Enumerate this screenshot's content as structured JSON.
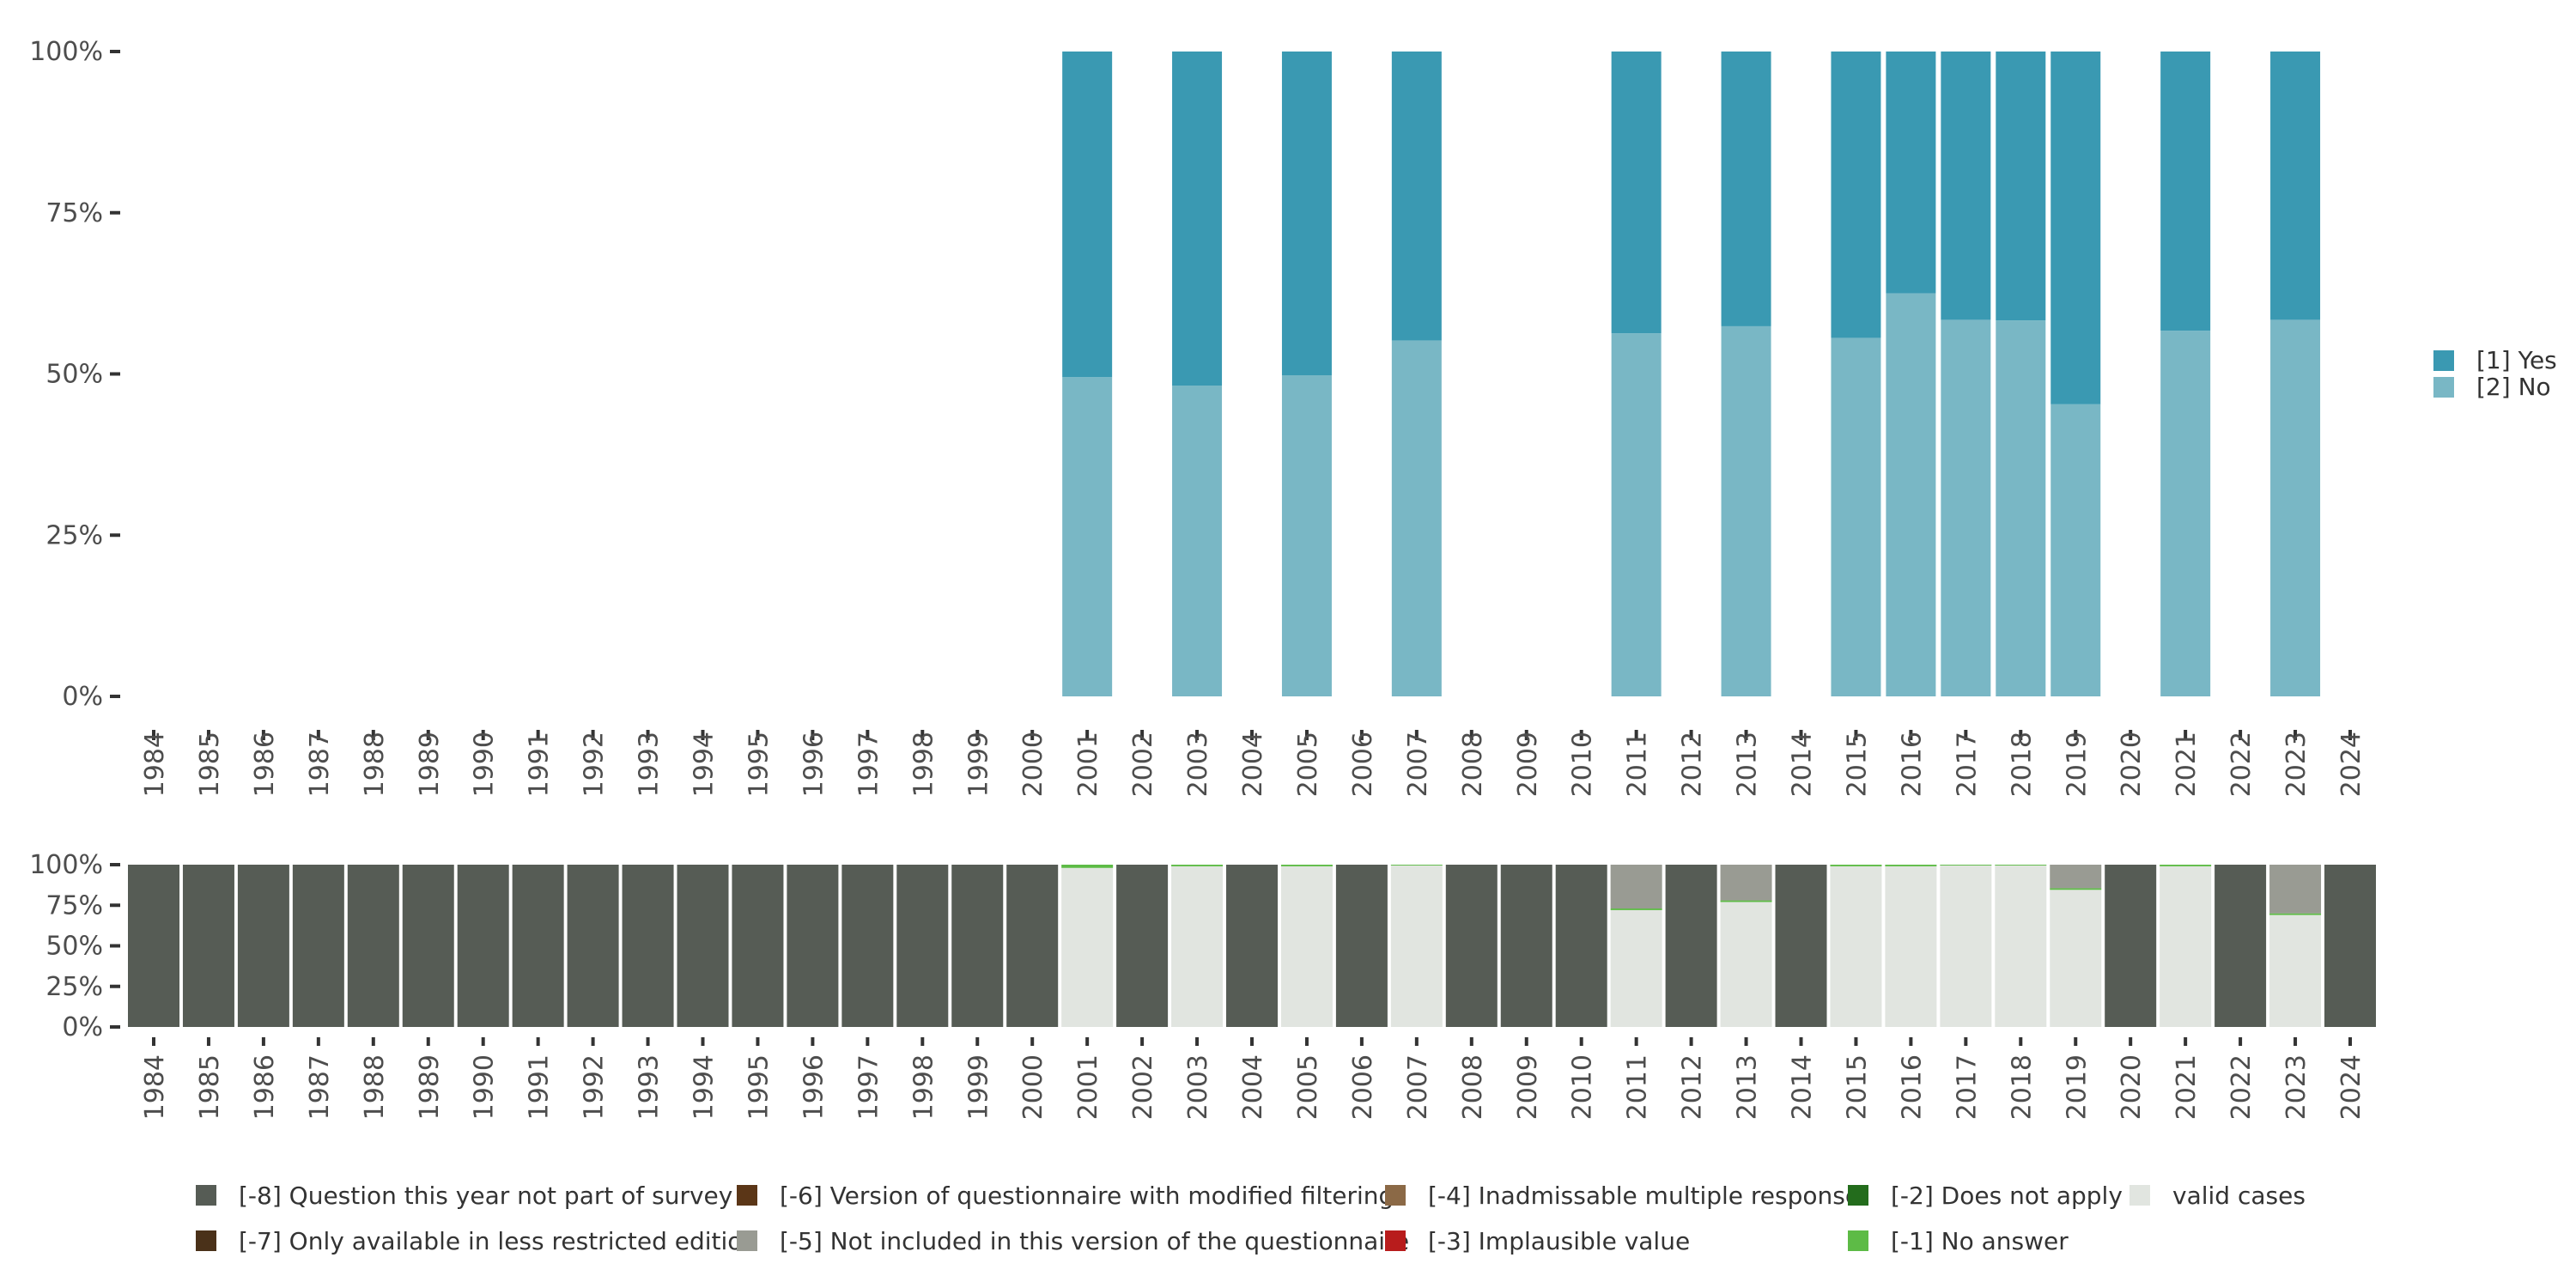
{
  "colors": {
    "yes": "#3a99b2",
    "no": "#79b7c5",
    "m8": "#565c55",
    "m7": "#4a3119",
    "m6": "#5b3617",
    "m5": "#999b93",
    "m4": "#8b6946",
    "m3": "#b81c1c",
    "m2": "#236c1c",
    "m1": "#5dbb46",
    "valid": "#e1e5e0",
    "axis": "#333333"
  },
  "chart_data": [
    {
      "type": "bar",
      "stacked": true,
      "title": "",
      "xlabel": "",
      "ylabel": "",
      "ylim": [
        0,
        100
      ],
      "yticks": [
        "100%",
        "75%",
        "50%",
        "25%",
        "0%"
      ],
      "categories": [
        "1984",
        "1985",
        "1986",
        "1987",
        "1988",
        "1989",
        "1990",
        "1991",
        "1992",
        "1993",
        "1994",
        "1995",
        "1996",
        "1997",
        "1998",
        "1999",
        "2000",
        "2001",
        "2002",
        "2003",
        "2004",
        "2005",
        "2006",
        "2007",
        "2008",
        "2009",
        "2010",
        "2011",
        "2012",
        "2013",
        "2014",
        "2015",
        "2016",
        "2017",
        "2018",
        "2019",
        "2020",
        "2021",
        "2022",
        "2023",
        "2024"
      ],
      "series": [
        {
          "name": "[2] No",
          "color_key": "no",
          "values": [
            null,
            null,
            null,
            null,
            null,
            null,
            null,
            null,
            null,
            null,
            null,
            null,
            null,
            null,
            null,
            null,
            null,
            49.5,
            null,
            48.2,
            null,
            49.8,
            null,
            55.2,
            null,
            null,
            null,
            56.3,
            null,
            57.4,
            null,
            55.6,
            62.5,
            58.4,
            58.3,
            45.3,
            null,
            56.7,
            null,
            58.4,
            null
          ]
        },
        {
          "name": "[1] Yes",
          "color_key": "yes",
          "values": [
            null,
            null,
            null,
            null,
            null,
            null,
            null,
            null,
            null,
            null,
            null,
            null,
            null,
            null,
            null,
            null,
            null,
            50.5,
            null,
            51.8,
            null,
            50.2,
            null,
            44.8,
            null,
            null,
            null,
            43.7,
            null,
            42.6,
            null,
            44.4,
            37.5,
            41.6,
            41.7,
            54.7,
            null,
            43.3,
            null,
            41.6,
            null
          ]
        }
      ],
      "legend": [
        "[1] Yes",
        "[2] No"
      ],
      "legend_position": "right"
    },
    {
      "type": "bar",
      "stacked": true,
      "ylim": [
        0,
        100
      ],
      "yticks": [
        "100%",
        "75%",
        "50%",
        "25%",
        "0%"
      ],
      "categories": [
        "1984",
        "1985",
        "1986",
        "1987",
        "1988",
        "1989",
        "1990",
        "1991",
        "1992",
        "1993",
        "1994",
        "1995",
        "1996",
        "1997",
        "1998",
        "1999",
        "2000",
        "2001",
        "2002",
        "2003",
        "2004",
        "2005",
        "2006",
        "2007",
        "2008",
        "2009",
        "2010",
        "2011",
        "2012",
        "2013",
        "2014",
        "2015",
        "2016",
        "2017",
        "2018",
        "2019",
        "2020",
        "2021",
        "2022",
        "2023",
        "2024"
      ],
      "series": [
        {
          "name": "valid cases",
          "color_key": "valid",
          "values": [
            0,
            0,
            0,
            0,
            0,
            0,
            0,
            0,
            0,
            0,
            0,
            0,
            0,
            0,
            0,
            0,
            0,
            98,
            0,
            99,
            0,
            99,
            0,
            99.5,
            0,
            0,
            0,
            72,
            0,
            77,
            0,
            99,
            99,
            99.5,
            99.5,
            84.5,
            0,
            99,
            0,
            69,
            0
          ]
        },
        {
          "name": "[-1] No answer",
          "color_key": "m1",
          "values": [
            0,
            0,
            0,
            0,
            0,
            0,
            0,
            0,
            0,
            0,
            0,
            0,
            0,
            0,
            0,
            0,
            0,
            2,
            0,
            1,
            0,
            1,
            0,
            0.5,
            0,
            0,
            0,
            1,
            0,
            1,
            0,
            1,
            1,
            0.5,
            0.5,
            1,
            0,
            1,
            0,
            1,
            0
          ]
        },
        {
          "name": "[-5] Not included in this version of the questionnaire",
          "color_key": "m5",
          "values": [
            0,
            0,
            0,
            0,
            0,
            0,
            0,
            0,
            0,
            0,
            0,
            0,
            0,
            0,
            0,
            0,
            0,
            0,
            0,
            0,
            0,
            0,
            0,
            0,
            0,
            0,
            0,
            27,
            0,
            22,
            0,
            0,
            0,
            0,
            0,
            14.5,
            0,
            0,
            0,
            30,
            0
          ]
        },
        {
          "name": "[-8] Question this year not part of survey",
          "color_key": "m8",
          "values": [
            100,
            100,
            100,
            100,
            100,
            100,
            100,
            100,
            100,
            100,
            100,
            100,
            100,
            100,
            100,
            100,
            100,
            0,
            100,
            0,
            100,
            0,
            100,
            0,
            100,
            100,
            100,
            0,
            100,
            0,
            100,
            0,
            0,
            0,
            0,
            0,
            100,
            0,
            100,
            0,
            100
          ]
        }
      ],
      "legend": [
        {
          "label": "[-8] Question this year not part of survey",
          "color_key": "m8"
        },
        {
          "label": "[-6] Version of questionnaire with modified filtering",
          "color_key": "m6"
        },
        {
          "label": "[-4] Inadmissable multiple response",
          "color_key": "m4"
        },
        {
          "label": "[-2] Does not apply",
          "color_key": "m2"
        },
        {
          "label": "valid cases",
          "color_key": "valid"
        },
        {
          "label": "[-7] Only available in less restricted edition",
          "color_key": "m7"
        },
        {
          "label": "[-5] Not included in this version of the questionnaire",
          "color_key": "m5"
        },
        {
          "label": "[-3] Implausible value",
          "color_key": "m3"
        },
        {
          "label": "[-1] No answer",
          "color_key": "m1"
        }
      ],
      "legend_position": "bottom"
    }
  ]
}
